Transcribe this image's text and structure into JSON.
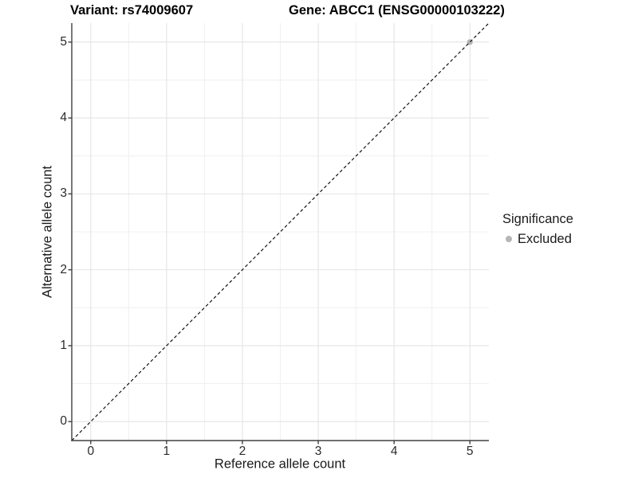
{
  "header": {
    "variant_title": "Variant: rs74009607",
    "gene_title": "Gene: ABCC1 (ENSG00000103222)"
  },
  "chart_data": {
    "type": "scatter",
    "title_left": "Variant: rs74009607",
    "title_right": "Gene: ABCC1 (ENSG00000103222)",
    "xlabel": "Reference allele count",
    "ylabel": "Alternative allele count",
    "xlim": [
      -0.25,
      5.25
    ],
    "ylim": [
      -0.25,
      5.25
    ],
    "xticks": [
      0,
      1,
      2,
      3,
      4,
      5
    ],
    "yticks": [
      0,
      1,
      2,
      3,
      4,
      5
    ],
    "minor_xticks": [
      0.5,
      1.5,
      2.5,
      3.5,
      4.5
    ],
    "minor_yticks": [
      0.5,
      1.5,
      2.5,
      3.5,
      4.5
    ],
    "grid": true,
    "points": [
      {
        "x": 5,
        "y": 5,
        "series": "Excluded"
      }
    ],
    "reference_line": {
      "slope": 1,
      "intercept": 0,
      "style": "dashed"
    },
    "legend": {
      "title": "Significance",
      "position": "right",
      "items": [
        {
          "label": "Excluded",
          "color": "#b5b5b5"
        }
      ]
    }
  },
  "colors": {
    "background": "#ffffff",
    "major_grid": "#e4e4e4",
    "minor_grid": "#f0f0f0",
    "axis_line": "#404040",
    "tick_mark": "#404040",
    "tick_text": "#2b2b2b",
    "reference_line": "#000000",
    "excluded_point": "#b5b5b5"
  }
}
